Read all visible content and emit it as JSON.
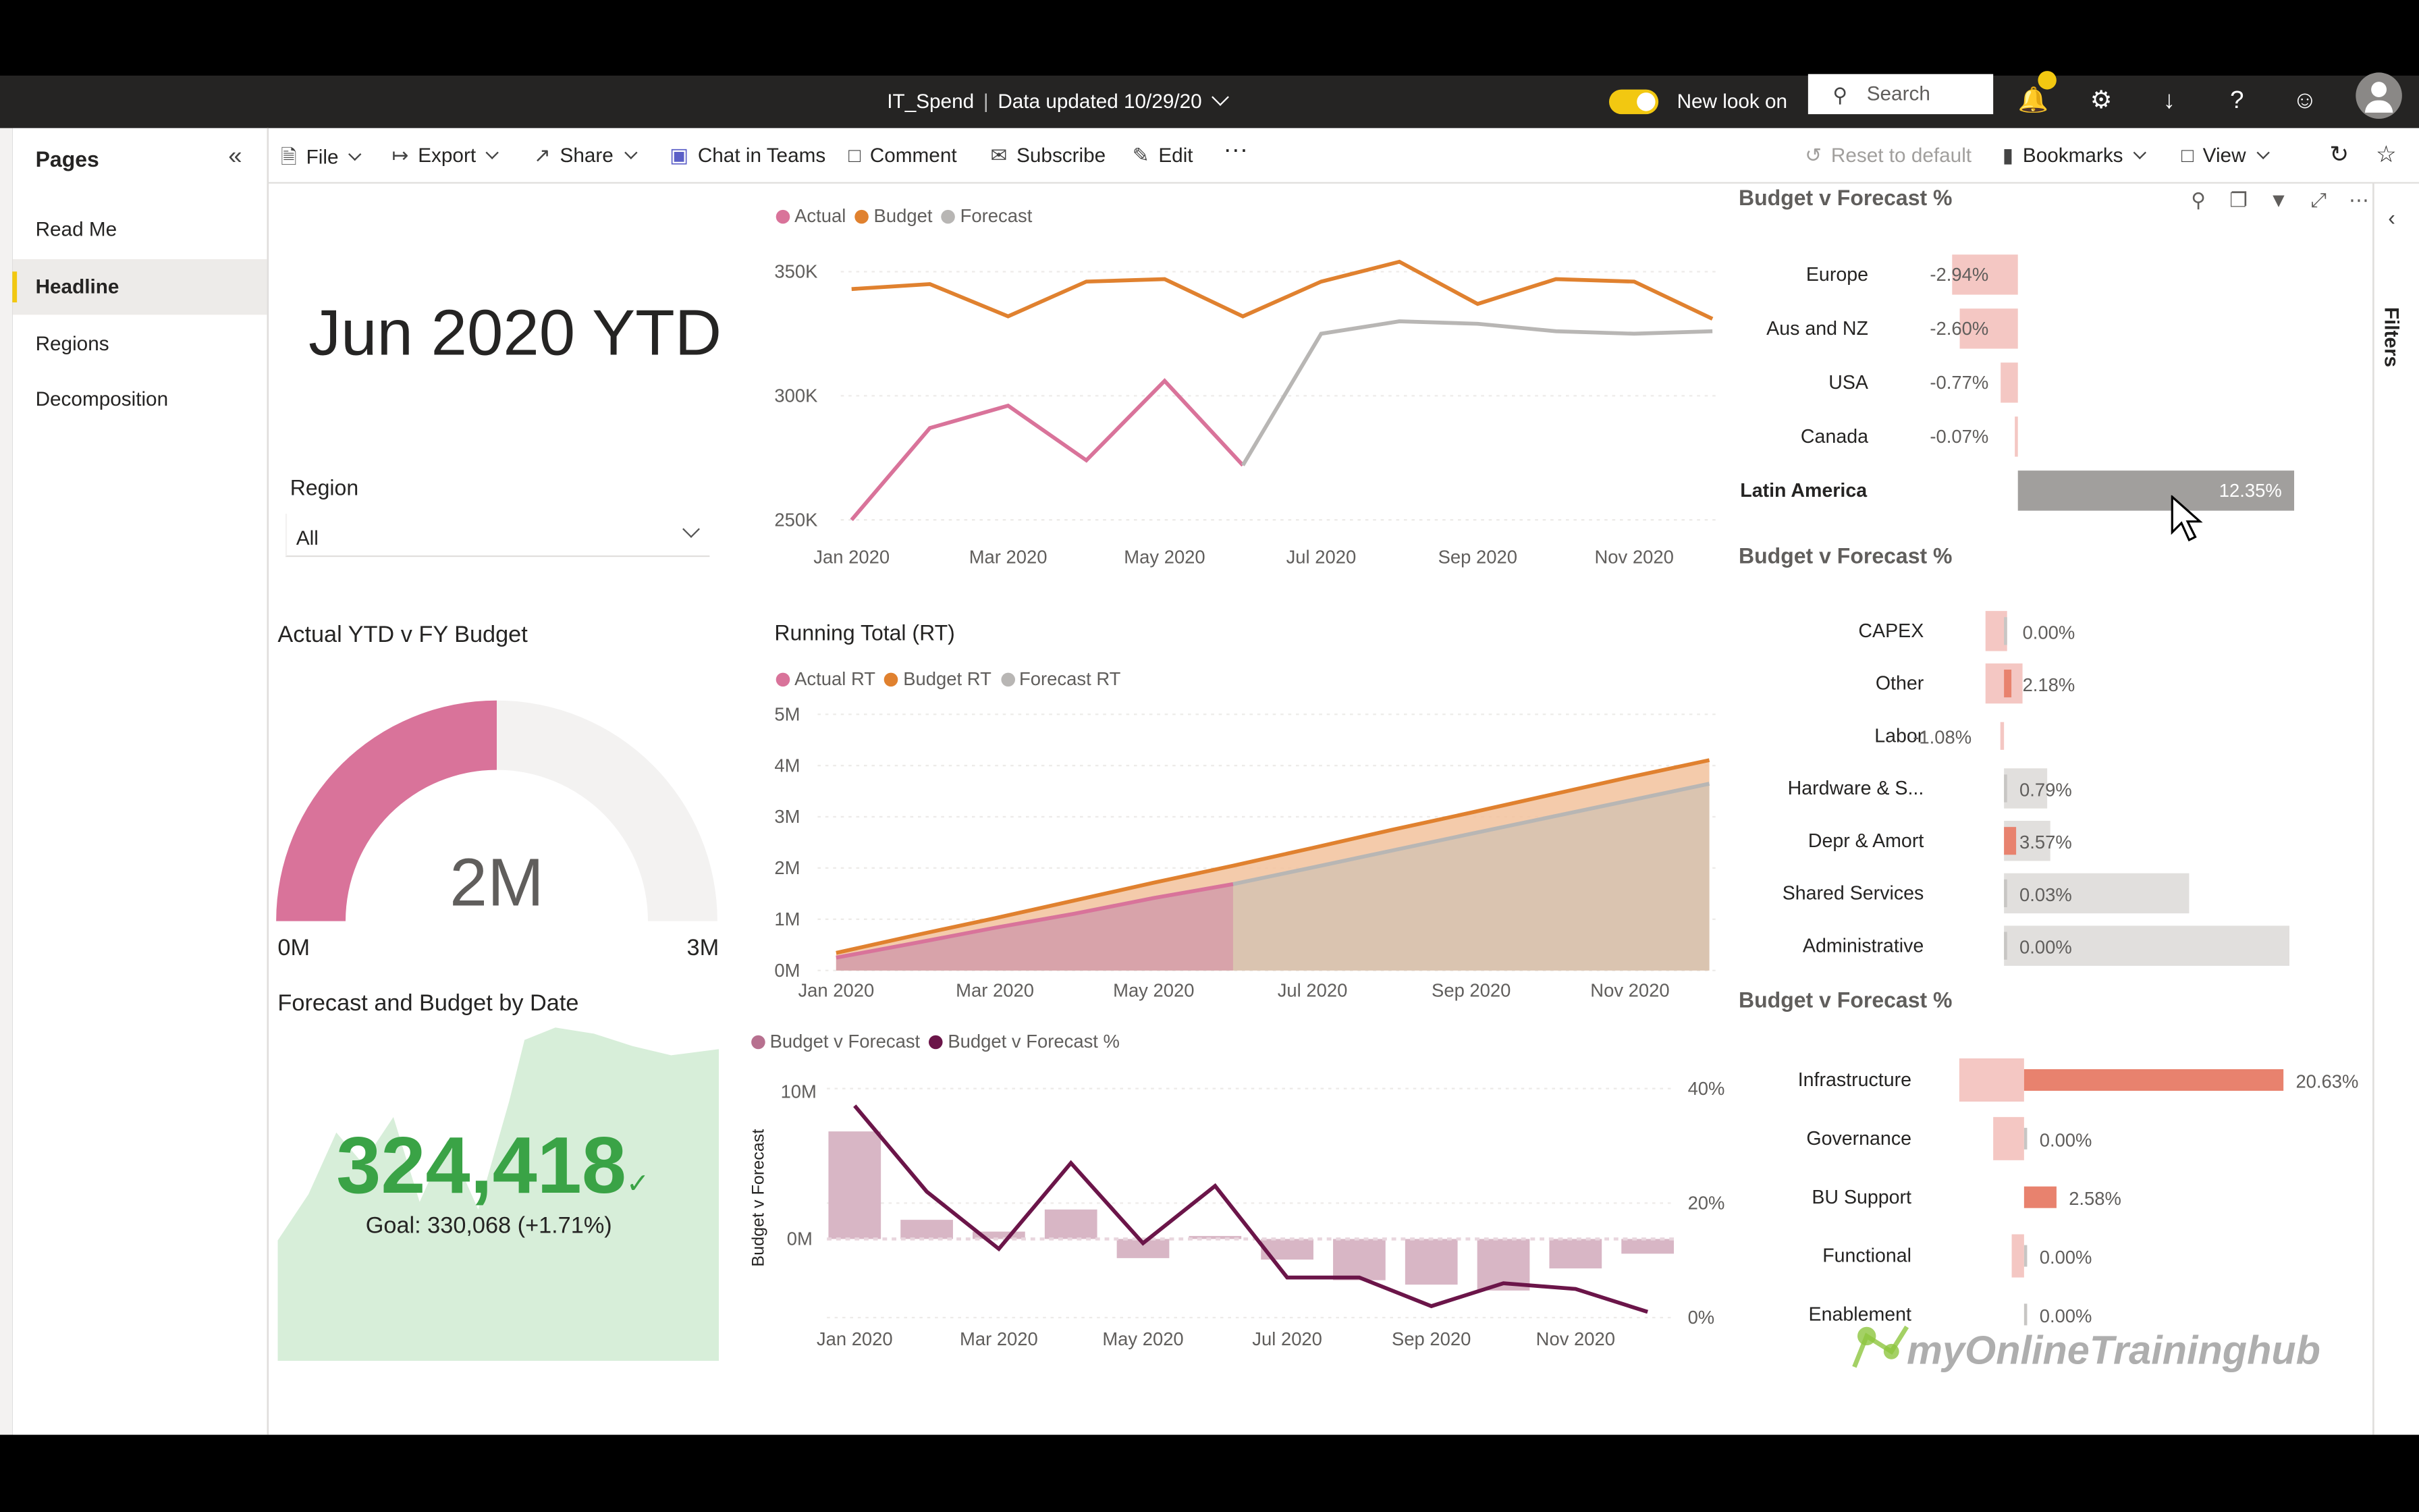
{
  "topbar": {
    "report_name": "IT_Spend",
    "separator": "|",
    "data_updated": "Data updated 10/29/20",
    "new_look": "New look on",
    "search_placeholder": "Search"
  },
  "pages_panel": {
    "title": "Pages",
    "items": [
      "Read Me",
      "Headline",
      "Regions",
      "Decomposition"
    ],
    "active": "Headline"
  },
  "commands": {
    "file": "File",
    "export": "Export",
    "share": "Share",
    "chat": "Chat in Teams",
    "comment": "Comment",
    "subscribe": "Subscribe",
    "edit": "Edit",
    "more": "···",
    "reset": "Reset to default",
    "bookmarks": "Bookmarks",
    "view": "View"
  },
  "filters_label": "Filters",
  "headline": "Jun 2020 YTD",
  "slicer": {
    "label": "Region",
    "value": "All"
  },
  "gauge": {
    "title": "Actual YTD v FY Budget",
    "value_label": "2M",
    "min_label": "0M",
    "max_label": "3M",
    "fraction": 0.5
  },
  "kpi": {
    "title": "Forecast and Budget by Date",
    "value": "324,418",
    "goal": "Goal: 330,068 (+1.71%)"
  },
  "colors": {
    "actual": "#d9739a",
    "budget": "#e0812f",
    "forecast": "#b8b6b4",
    "bvf_bar": "#d8b6c5",
    "bvf_line": "#6b1549",
    "neg_bar": "#f4c7c3",
    "pos_bar": "#e8826e",
    "grey_bar": "#e1dfdd",
    "kpi_green": "#3aa346"
  },
  "chart_data": [
    {
      "id": "monthly",
      "type": "line",
      "title": "",
      "categories": [
        "Jan 2020",
        "Feb 2020",
        "Mar 2020",
        "Apr 2020",
        "May 2020",
        "Jun 2020",
        "Jul 2020",
        "Aug 2020",
        "Sep 2020",
        "Oct 2020",
        "Nov 2020",
        "Dec 2020"
      ],
      "x_tick_labels": [
        "Jan 2020",
        "Mar 2020",
        "May 2020",
        "Jul 2020",
        "Sep 2020",
        "Nov 2020"
      ],
      "y_tick_labels": [
        "250K",
        "300K",
        "350K"
      ],
      "ylim": [
        245000,
        360000
      ],
      "series": [
        {
          "name": "Actual",
          "values": [
            250000,
            287000,
            296000,
            274000,
            306000,
            272000,
            null,
            null,
            null,
            null,
            null,
            null
          ]
        },
        {
          "name": "Budget",
          "values": [
            343000,
            345000,
            332000,
            346000,
            347000,
            332000,
            346000,
            354000,
            337000,
            347000,
            346000,
            331000
          ]
        },
        {
          "name": "Forecast",
          "values": [
            null,
            null,
            null,
            null,
            null,
            272000,
            325000,
            330000,
            329000,
            326000,
            325000,
            326000
          ]
        }
      ]
    },
    {
      "id": "running_total",
      "type": "area",
      "title": "Running Total (RT)",
      "categories": [
        "Jan 2020",
        "Feb 2020",
        "Mar 2020",
        "Apr 2020",
        "May 2020",
        "Jun 2020",
        "Jul 2020",
        "Aug 2020",
        "Sep 2020",
        "Oct 2020",
        "Nov 2020",
        "Dec 2020"
      ],
      "x_tick_labels": [
        "Jan 2020",
        "Mar 2020",
        "May 2020",
        "Jul 2020",
        "Sep 2020",
        "Nov 2020"
      ],
      "y_tick_labels": [
        "0M",
        "1M",
        "2M",
        "3M",
        "4M",
        "5M"
      ],
      "ylim": [
        0,
        5000000
      ],
      "series": [
        {
          "name": "Actual RT",
          "values": [
            250000,
            537000,
            833000,
            1107000,
            1413000,
            1685000,
            null,
            null,
            null,
            null,
            null,
            null
          ]
        },
        {
          "name": "Budget RT",
          "values": [
            343000,
            688000,
            1020000,
            1366000,
            1713000,
            2045000,
            2391000,
            2745000,
            3082000,
            3429000,
            3775000,
            4106000
          ]
        },
        {
          "name": "Forecast RT",
          "values": [
            250000,
            537000,
            833000,
            1107000,
            1413000,
            1685000,
            2010000,
            2340000,
            2669000,
            2995000,
            3320000,
            3646000
          ]
        }
      ]
    },
    {
      "id": "budget_v_forecast",
      "type": "bar",
      "title": "",
      "categories": [
        "Jan 2020",
        "Feb 2020",
        "Mar 2020",
        "Apr 2020",
        "May 2020",
        "Jun 2020",
        "Jul 2020",
        "Aug 2020",
        "Sep 2020",
        "Oct 2020",
        "Nov 2020",
        "Dec 2020"
      ],
      "x_tick_labels": [
        "Jan 2020",
        "Mar 2020",
        "May 2020",
        "Jul 2020",
        "Sep 2020",
        "Nov 2020"
      ],
      "ylabel": "Budget v Forecast",
      "y_tick_labels": [
        "0M",
        "10M"
      ],
      "y2_tick_labels": [
        "0%",
        "20%",
        "40%"
      ],
      "ylim": [
        -4500000,
        11000000
      ],
      "y2lim": [
        0,
        0.45
      ],
      "series": [
        {
          "name": "Budget v Forecast",
          "values": [
            7300000,
            1300000,
            500000,
            2000000,
            -1300000,
            200000,
            -1400000,
            -2800000,
            -3100000,
            -3500000,
            -2000000,
            -1000000
          ]
        },
        {
          "name": "Budget v Forecast %",
          "values": [
            0.37,
            0.22,
            0.12,
            0.27,
            0.13,
            0.23,
            0.07,
            0.07,
            0.02,
            0.06,
            0.05,
            0.01
          ]
        }
      ]
    },
    {
      "id": "bvf_region",
      "type": "bar",
      "title": "Budget v Forecast %",
      "categories": [
        "Europe",
        "Aus and NZ",
        "USA",
        "Canada",
        "Latin America"
      ],
      "values": [
        -2.94,
        -2.6,
        -0.77,
        -0.07,
        12.35
      ],
      "value_labels": [
        "-2.94%",
        "-2.60%",
        "-0.77%",
        "-0.07%",
        "12.35%"
      ],
      "highlighted": "Latin America"
    },
    {
      "id": "bvf_category",
      "type": "bar",
      "title": "Budget v Forecast %",
      "categories": [
        "CAPEX",
        "Other",
        "Labor",
        "Hardware & S...",
        "Depr & Amort",
        "Shared Services",
        "Administrative"
      ],
      "values": [
        0.0,
        2.18,
        -1.08,
        0.79,
        3.57,
        0.03,
        0.0
      ],
      "value_labels": [
        "0.00%",
        "2.18%",
        "-1.08%",
        "0.79%",
        "3.57%",
        "0.03%",
        "0.00%"
      ]
    },
    {
      "id": "bvf_unit",
      "type": "bar",
      "title": "Budget v Forecast %",
      "categories": [
        "Infrastructure",
        "Governance",
        "BU Support",
        "Functional",
        "Enablement"
      ],
      "values": [
        20.63,
        0.0,
        2.58,
        0.0,
        0.0
      ],
      "value_labels": [
        "20.63%",
        "0.00%",
        "2.58%",
        "0.00%",
        "0.00%"
      ]
    }
  ],
  "watermark": "myOnlineTraininghub"
}
